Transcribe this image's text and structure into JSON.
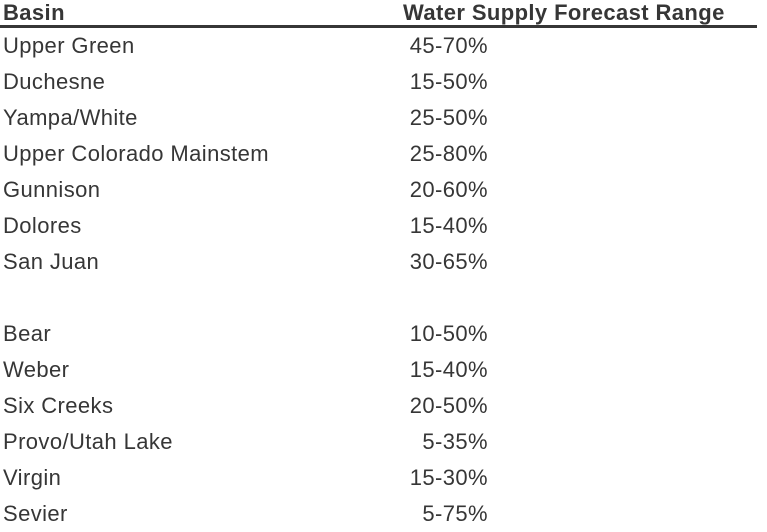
{
  "colors": {
    "background": "#ffffff",
    "text": "#363636",
    "header_rule": "#363636"
  },
  "table": {
    "headers": [
      "Basin",
      "Water Supply Forecast Range"
    ],
    "group1": [
      {
        "basin": "Upper Green",
        "range": "45-70%"
      },
      {
        "basin": "Duchesne",
        "range": "15-50%"
      },
      {
        "basin": "Yampa/White",
        "range": "25-50%"
      },
      {
        "basin": "Upper Colorado Mainstem",
        "range": "25-80%"
      },
      {
        "basin": "Gunnison",
        "range": "20-60%"
      },
      {
        "basin": "Dolores",
        "range": "15-40%"
      },
      {
        "basin": "San Juan",
        "range": "30-65%"
      }
    ],
    "group2": [
      {
        "basin": "Bear",
        "range": "10-50%"
      },
      {
        "basin": "Weber",
        "range": "15-40%"
      },
      {
        "basin": "Six Creeks",
        "range": "20-50%"
      },
      {
        "basin": "Provo/Utah Lake",
        "range": "5-35%"
      },
      {
        "basin": "Virgin",
        "range": "15-30%"
      },
      {
        "basin": "Sevier",
        "range": "5-75%"
      }
    ]
  }
}
